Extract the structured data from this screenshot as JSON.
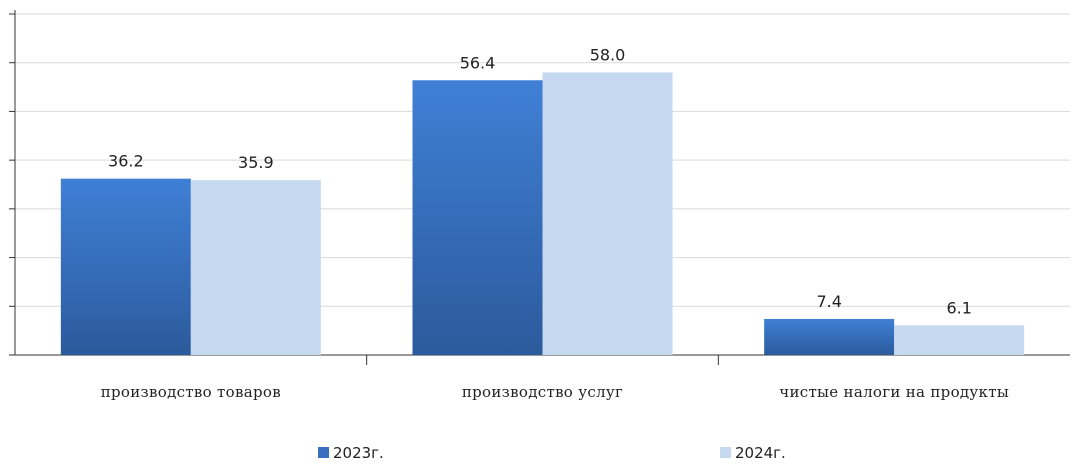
{
  "chart_data": {
    "type": "bar",
    "categories": [
      "производство товаров",
      "производство услуг",
      "чистые налоги на продукты"
    ],
    "series": [
      {
        "name": "2023г.",
        "values": [
          36.2,
          56.4,
          7.4
        ],
        "color": "#3a6fbf"
      },
      {
        "name": "2024г.",
        "values": [
          35.9,
          58.0,
          6.1
        ],
        "color": "#c6d8f0"
      }
    ],
    "value_labels": [
      [
        "36.2",
        "56.4",
        "7.4"
      ],
      [
        "35.9",
        "58.0",
        "6.1"
      ]
    ],
    "ylim": [
      0,
      70
    ],
    "y_tick_step": 10,
    "grid": true,
    "legend_position": "bottom"
  }
}
